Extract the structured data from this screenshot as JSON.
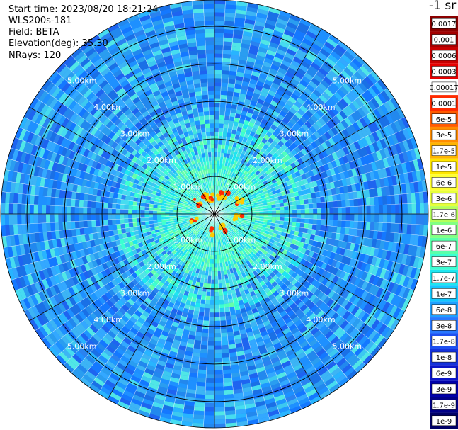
{
  "header": {
    "start_time": "Start time: 2023/08/20 18:21:24",
    "instrument": "WLS200s-181",
    "field": "Field: BETA",
    "elevation": "Elevation(deg): 35.30",
    "nrays": "NRays: 120"
  },
  "colorbar": {
    "unit_label": "-1 sr",
    "levels": [
      {
        "label": "0.0017",
        "color": "#8b0000"
      },
      {
        "label": "0.001",
        "color": "#a30000"
      },
      {
        "label": "0.0006",
        "color": "#c80000"
      },
      {
        "label": "0.0003",
        "color": "#e60000"
      },
      {
        "label": "0.00017",
        "color": "#ffffff"
      },
      {
        "label": "0.0001",
        "color": "#ff2a00"
      },
      {
        "label": "6e-5",
        "color": "#ff5a00"
      },
      {
        "label": "3e-5",
        "color": "#ff8c00"
      },
      {
        "label": "1.7e-5",
        "color": "#ffb400"
      },
      {
        "label": "1e-5",
        "color": "#ffe600"
      },
      {
        "label": "6e-6",
        "color": "#ffff30"
      },
      {
        "label": "3e-6",
        "color": "#e6ff3c"
      },
      {
        "label": "1.7e-6",
        "color": "#b4ff5a"
      },
      {
        "label": "1e-6",
        "color": "#82ff82"
      },
      {
        "label": "6e-7",
        "color": "#5affaa"
      },
      {
        "label": "3e-7",
        "color": "#3cffd2"
      },
      {
        "label": "1.7e-7",
        "color": "#1ee6f0"
      },
      {
        "label": "1e-7",
        "color": "#14c8ff"
      },
      {
        "label": "6e-8",
        "color": "#1ea0ff"
      },
      {
        "label": "3e-8",
        "color": "#2878ff"
      },
      {
        "label": "1.7e-8",
        "color": "#1e50f0"
      },
      {
        "label": "1e-8",
        "color": "#1432dc"
      },
      {
        "label": "6e-9",
        "color": "#0a14c8"
      },
      {
        "label": "3e-9",
        "color": "#0000aa"
      },
      {
        "label": "1.7e-9",
        "color": "#000088"
      },
      {
        "label": "1e-9",
        "color": "#000066"
      }
    ]
  },
  "chart_data": {
    "type": "heatmap",
    "projection": "polar (PPI scan)",
    "nrays": 120,
    "rmax_km": 5.7,
    "range_rings_km": [
      1,
      2,
      3,
      4,
      5
    ],
    "ring_labels": [
      "1.00km",
      "2.00km",
      "3.00km",
      "4.00km",
      "5.00km"
    ],
    "azimuth_gridlines_deg": [
      0,
      30,
      60,
      90,
      120,
      150,
      180,
      210,
      240,
      270,
      300,
      330
    ],
    "colors": {
      "dominant_far": "#1e90ff",
      "near_field": "#3cffd2",
      "hotspots": "#ff2a00"
    }
  }
}
